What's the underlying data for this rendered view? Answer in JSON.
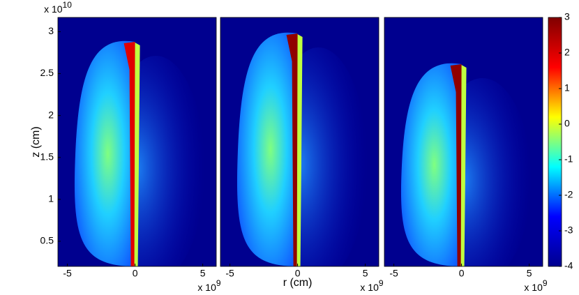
{
  "chart_data": [
    {
      "type": "heatmap",
      "ylabel": "z (cm)",
      "xlim": [
        -5.7,
        6
      ],
      "ylim": [
        0.2,
        3.17
      ],
      "xticks": [
        -5,
        0,
        5
      ],
      "yticks": [
        0.5,
        1,
        1.5,
        2,
        2.5,
        3
      ],
      "x_exponent": {
        "base": "x 10",
        "power": "9"
      },
      "y_exponent": {
        "base": "x 10",
        "power": "10"
      }
    },
    {
      "type": "heatmap",
      "xlabel": "r (cm)",
      "xlim": [
        -5.7,
        6
      ],
      "ylim": [
        0.2,
        3.17
      ],
      "xticks": [
        -5,
        0,
        5
      ],
      "x_exponent": {
        "base": "x 10",
        "power": "9"
      }
    },
    {
      "type": "heatmap",
      "xlim": [
        -5.7,
        6
      ],
      "ylim": [
        0.2,
        3.17
      ],
      "xticks": [
        -5,
        0,
        5
      ],
      "x_exponent": {
        "base": "x 10",
        "power": "9"
      }
    },
    {
      "type": "colorbar",
      "lim": [
        -4,
        3
      ],
      "ticks": [
        -4,
        -3,
        -2,
        -1,
        0,
        1,
        2,
        3
      ],
      "colors": [
        "#00008f",
        "#0000ff",
        "#00ffff",
        "#ffff00",
        "#ff0000",
        "#800000"
      ]
    }
  ]
}
